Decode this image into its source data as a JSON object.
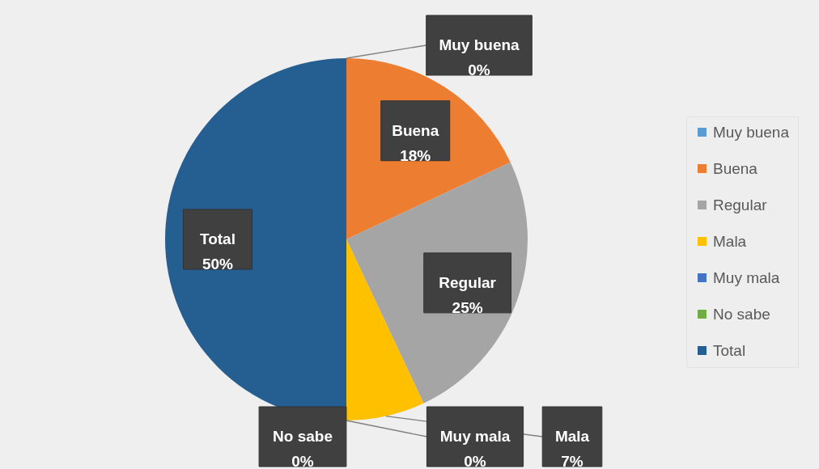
{
  "chart_data": {
    "type": "pie",
    "categories": [
      "Muy buena",
      "Buena",
      "Regular",
      "Mala",
      "Muy mala",
      "No sabe",
      "Total"
    ],
    "values": [
      0,
      18,
      25,
      7,
      0,
      0,
      50
    ],
    "colors": [
      "#5b9bd5",
      "#ed7d31",
      "#a5a5a5",
      "#ffc000",
      "#4472c4",
      "#70ad47",
      "#255e91"
    ],
    "value_labels": [
      "0%",
      "18%",
      "25%",
      "7%",
      "0%",
      "0%",
      "50%"
    ],
    "legend": "right"
  }
}
